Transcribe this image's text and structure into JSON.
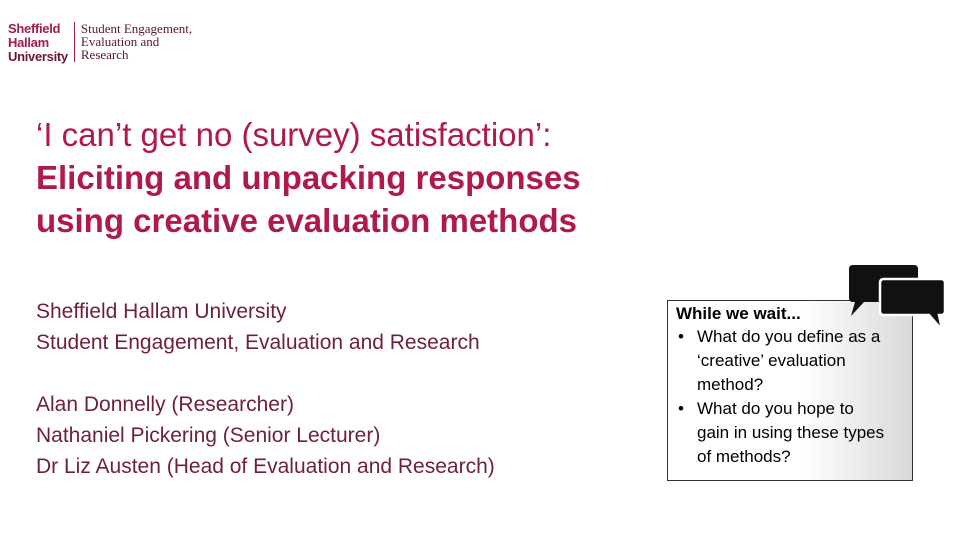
{
  "logo": {
    "name_lines": [
      "Sheffield",
      "Hallam",
      "University"
    ],
    "dept_lines": [
      "Student Engagement,",
      "Evaluation and",
      "Research"
    ]
  },
  "title": {
    "line1": "‘I can’t get no (survey) satisfaction’:",
    "line2": "Eliciting and unpacking responses",
    "line3": "using creative evaluation methods"
  },
  "affiliation": [
    "Sheffield Hallam University",
    "Student Engagement, Evaluation and Research"
  ],
  "authors": [
    "Alan Donnelly (Researcher)",
    "Nathaniel Pickering (Senior Lecturer)",
    "Dr Liz Austen (Head of Evaluation and Research)"
  ],
  "wait_box": {
    "title": "While we wait...",
    "bullet_char": "•",
    "items": [
      {
        "lines": [
          "What do you define as a",
          "‘creative’ evaluation",
          "method?"
        ]
      },
      {
        "lines": [
          "What do you hope to",
          "gain in using these types",
          "of methods?"
        ]
      }
    ]
  },
  "icons": {
    "chat": "speech-bubbles-icon"
  },
  "colors": {
    "brand": "#9e1c4f",
    "title": "#b0184e",
    "body": "#6e1f3d"
  }
}
